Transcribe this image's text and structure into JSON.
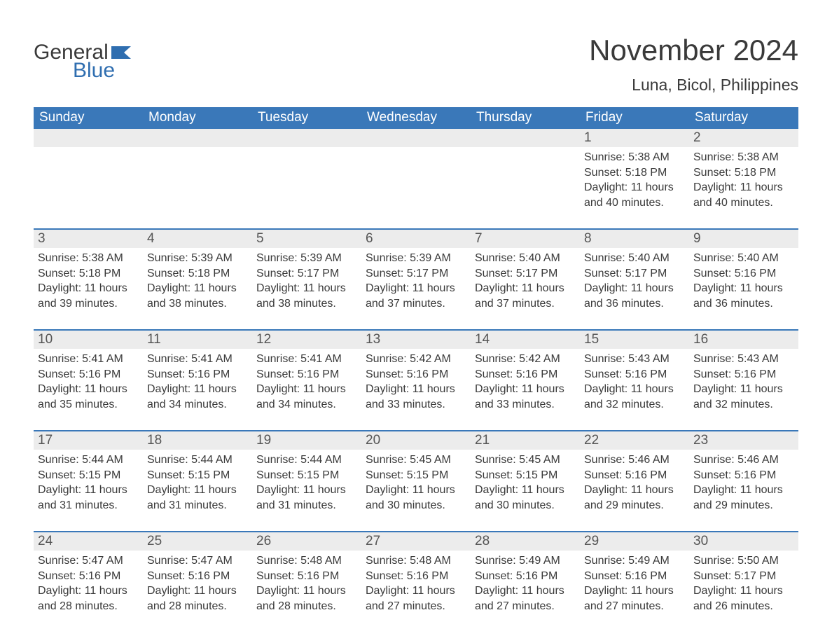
{
  "logo": {
    "general": "General",
    "blue": "Blue",
    "flag_color": "#2f6eb0"
  },
  "title": "November 2024",
  "location": "Luna, Bicol, Philippines",
  "colors": {
    "header_bg": "#3a78b9",
    "header_text": "#ffffff",
    "daynum_bg": "#ececec",
    "week_divider": "#3a78b9",
    "body_text": "#3a3a3a",
    "page_bg": "#ffffff"
  },
  "typography": {
    "title_fontsize": 42,
    "location_fontsize": 23,
    "weekday_fontsize": 19,
    "daynum_fontsize": 19,
    "body_fontsize": 16,
    "font_family": "Arial"
  },
  "weekdays": [
    "Sunday",
    "Monday",
    "Tuesday",
    "Wednesday",
    "Thursday",
    "Friday",
    "Saturday"
  ],
  "labels": {
    "sunrise": "Sunrise:",
    "sunset": "Sunset:",
    "daylight": "Daylight:"
  },
  "weeks": [
    [
      null,
      null,
      null,
      null,
      null,
      {
        "n": "1",
        "sunrise": "5:38 AM",
        "sunset": "5:18 PM",
        "daylight": "11 hours and 40 minutes."
      },
      {
        "n": "2",
        "sunrise": "5:38 AM",
        "sunset": "5:18 PM",
        "daylight": "11 hours and 40 minutes."
      }
    ],
    [
      {
        "n": "3",
        "sunrise": "5:38 AM",
        "sunset": "5:18 PM",
        "daylight": "11 hours and 39 minutes."
      },
      {
        "n": "4",
        "sunrise": "5:39 AM",
        "sunset": "5:18 PM",
        "daylight": "11 hours and 38 minutes."
      },
      {
        "n": "5",
        "sunrise": "5:39 AM",
        "sunset": "5:17 PM",
        "daylight": "11 hours and 38 minutes."
      },
      {
        "n": "6",
        "sunrise": "5:39 AM",
        "sunset": "5:17 PM",
        "daylight": "11 hours and 37 minutes."
      },
      {
        "n": "7",
        "sunrise": "5:40 AM",
        "sunset": "5:17 PM",
        "daylight": "11 hours and 37 minutes."
      },
      {
        "n": "8",
        "sunrise": "5:40 AM",
        "sunset": "5:17 PM",
        "daylight": "11 hours and 36 minutes."
      },
      {
        "n": "9",
        "sunrise": "5:40 AM",
        "sunset": "5:16 PM",
        "daylight": "11 hours and 36 minutes."
      }
    ],
    [
      {
        "n": "10",
        "sunrise": "5:41 AM",
        "sunset": "5:16 PM",
        "daylight": "11 hours and 35 minutes."
      },
      {
        "n": "11",
        "sunrise": "5:41 AM",
        "sunset": "5:16 PM",
        "daylight": "11 hours and 34 minutes."
      },
      {
        "n": "12",
        "sunrise": "5:41 AM",
        "sunset": "5:16 PM",
        "daylight": "11 hours and 34 minutes."
      },
      {
        "n": "13",
        "sunrise": "5:42 AM",
        "sunset": "5:16 PM",
        "daylight": "11 hours and 33 minutes."
      },
      {
        "n": "14",
        "sunrise": "5:42 AM",
        "sunset": "5:16 PM",
        "daylight": "11 hours and 33 minutes."
      },
      {
        "n": "15",
        "sunrise": "5:43 AM",
        "sunset": "5:16 PM",
        "daylight": "11 hours and 32 minutes."
      },
      {
        "n": "16",
        "sunrise": "5:43 AM",
        "sunset": "5:16 PM",
        "daylight": "11 hours and 32 minutes."
      }
    ],
    [
      {
        "n": "17",
        "sunrise": "5:44 AM",
        "sunset": "5:15 PM",
        "daylight": "11 hours and 31 minutes."
      },
      {
        "n": "18",
        "sunrise": "5:44 AM",
        "sunset": "5:15 PM",
        "daylight": "11 hours and 31 minutes."
      },
      {
        "n": "19",
        "sunrise": "5:44 AM",
        "sunset": "5:15 PM",
        "daylight": "11 hours and 31 minutes."
      },
      {
        "n": "20",
        "sunrise": "5:45 AM",
        "sunset": "5:15 PM",
        "daylight": "11 hours and 30 minutes."
      },
      {
        "n": "21",
        "sunrise": "5:45 AM",
        "sunset": "5:15 PM",
        "daylight": "11 hours and 30 minutes."
      },
      {
        "n": "22",
        "sunrise": "5:46 AM",
        "sunset": "5:16 PM",
        "daylight": "11 hours and 29 minutes."
      },
      {
        "n": "23",
        "sunrise": "5:46 AM",
        "sunset": "5:16 PM",
        "daylight": "11 hours and 29 minutes."
      }
    ],
    [
      {
        "n": "24",
        "sunrise": "5:47 AM",
        "sunset": "5:16 PM",
        "daylight": "11 hours and 28 minutes."
      },
      {
        "n": "25",
        "sunrise": "5:47 AM",
        "sunset": "5:16 PM",
        "daylight": "11 hours and 28 minutes."
      },
      {
        "n": "26",
        "sunrise": "5:48 AM",
        "sunset": "5:16 PM",
        "daylight": "11 hours and 28 minutes."
      },
      {
        "n": "27",
        "sunrise": "5:48 AM",
        "sunset": "5:16 PM",
        "daylight": "11 hours and 27 minutes."
      },
      {
        "n": "28",
        "sunrise": "5:49 AM",
        "sunset": "5:16 PM",
        "daylight": "11 hours and 27 minutes."
      },
      {
        "n": "29",
        "sunrise": "5:49 AM",
        "sunset": "5:16 PM",
        "daylight": "11 hours and 27 minutes."
      },
      {
        "n": "30",
        "sunrise": "5:50 AM",
        "sunset": "5:17 PM",
        "daylight": "11 hours and 26 minutes."
      }
    ]
  ]
}
